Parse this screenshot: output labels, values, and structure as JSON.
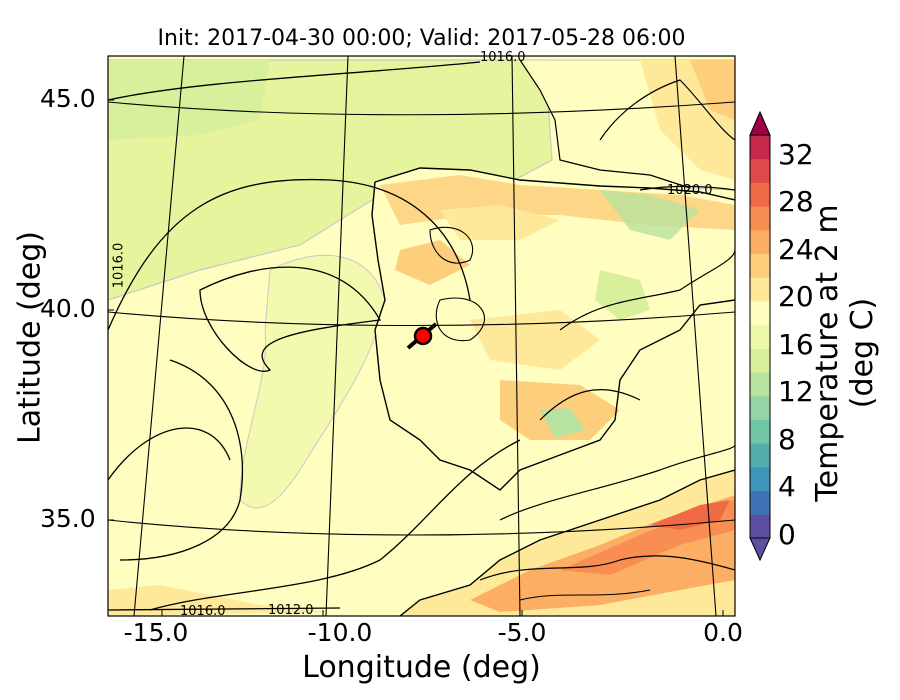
{
  "map": {
    "title": "Init: 2017-04-30 00:00; Valid: 2017-05-28 06:00",
    "xlabel": "Longitude (deg)",
    "ylabel": "Latitude (deg)",
    "x_ticks": [
      "-15.0",
      "-10.0",
      "-5.0",
      "0.0"
    ],
    "y_ticks": [
      "45.0",
      "40.0",
      "35.0"
    ],
    "x_range": [
      -15.8,
      0.0
    ],
    "y_range": [
      32.8,
      46.2
    ],
    "contour_labels": [
      "1016.0",
      "1020.0",
      "1016.0",
      "1012.0",
      "1016.0"
    ],
    "marker": {
      "lon": -7.6,
      "lat": 39.3,
      "color": "#ff0000"
    }
  },
  "colorbar": {
    "label": "Temperature at 2 m (deg C)",
    "ticks": [
      "0",
      "4",
      "8",
      "12",
      "16",
      "20",
      "24",
      "28",
      "32"
    ],
    "levels": [
      0,
      2,
      4,
      6,
      8,
      10,
      12,
      14,
      16,
      18,
      20,
      22,
      24,
      26,
      28,
      30,
      32,
      34
    ],
    "colors": [
      "#5e4fa2",
      "#3f72b4",
      "#3c96b7",
      "#54aead",
      "#71c6a4",
      "#95d4a4",
      "#b8e29f",
      "#d8ef9b",
      "#eff8a6",
      "#fffdbf",
      "#fee99a",
      "#fdcf7d",
      "#fcaf64",
      "#f88e51",
      "#ef6a45",
      "#dd4a4c",
      "#c5284b",
      "#9e0142"
    ]
  }
}
